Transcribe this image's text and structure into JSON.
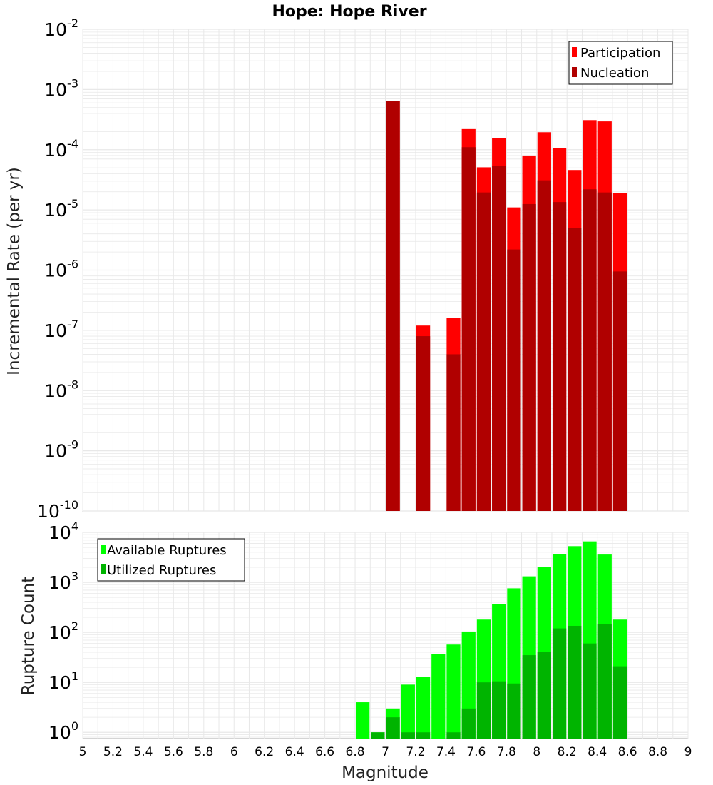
{
  "title": "Hope: Hope River",
  "xlabel": "Magnitude",
  "colors": {
    "participation": "#ff0000",
    "nucleation": "#b00000",
    "available": "#00ff00",
    "utilized": "#00b400",
    "grid": "#e8e8e8"
  },
  "chart_data": [
    {
      "type": "bar",
      "scale": "log",
      "ylabel": "Incremental Rate (per yr)",
      "xlim": [
        5,
        9
      ],
      "ylim": [
        1e-10,
        0.01
      ],
      "y_ticks": [
        {
          "base": "10",
          "exp": "-10",
          "value": 1e-10
        },
        {
          "base": "10",
          "exp": "-9",
          "value": 1e-09
        },
        {
          "base": "10",
          "exp": "-8",
          "value": 1e-08
        },
        {
          "base": "10",
          "exp": "-7",
          "value": 1e-07
        },
        {
          "base": "10",
          "exp": "-6",
          "value": 1e-06
        },
        {
          "base": "10",
          "exp": "-5",
          "value": 1e-05
        },
        {
          "base": "10",
          "exp": "-4",
          "value": 0.0001
        },
        {
          "base": "10",
          "exp": "-3",
          "value": 0.001
        },
        {
          "base": "10",
          "exp": "-2",
          "value": 0.01
        }
      ],
      "grid": true,
      "legend_position": "top-right",
      "series": [
        {
          "name": "Participation",
          "color": "#ff0000",
          "x": [
            7.05,
            7.25,
            7.45,
            7.55,
            7.65,
            7.75,
            7.85,
            7.95,
            8.05,
            8.15,
            8.25,
            8.35,
            8.45,
            8.55
          ],
          "values": [
            0.00065,
            1.2e-07,
            1.6e-07,
            0.00022,
            5.1e-05,
            0.000155,
            1.1e-05,
            8e-05,
            0.000195,
            0.000105,
            4.6e-05,
            0.00031,
            0.000295,
            1.9e-05
          ]
        },
        {
          "name": "Nucleation",
          "color": "#b00000",
          "x": [
            7.05,
            7.25,
            7.45,
            7.55,
            7.65,
            7.75,
            7.85,
            7.95,
            8.05,
            8.15,
            8.25,
            8.35,
            8.45,
            8.55
          ],
          "values": [
            0.00065,
            8e-08,
            4e-08,
            0.00011,
            1.95e-05,
            5.3e-05,
            2.2e-06,
            1.25e-05,
            3.1e-05,
            1.35e-05,
            5e-06,
            2.2e-05,
            1.95e-05,
            9.5e-07
          ]
        }
      ]
    },
    {
      "type": "bar",
      "scale": "log",
      "ylabel": "Rupture Count",
      "xlabel": "Magnitude",
      "xlim": [
        5,
        9
      ],
      "ylim": [
        0.75,
        10000
      ],
      "y_ticks": [
        {
          "base": "10",
          "exp": "0",
          "value": 1
        },
        {
          "base": "10",
          "exp": "1",
          "value": 10
        },
        {
          "base": "10",
          "exp": "2",
          "value": 100
        },
        {
          "base": "10",
          "exp": "3",
          "value": 1000
        },
        {
          "base": "10",
          "exp": "4",
          "value": 10000
        }
      ],
      "x_ticks": [
        "5",
        "5.2",
        "5.4",
        "5.6",
        "5.8",
        "6",
        "6.2",
        "6.4",
        "6.6",
        "6.8",
        "7",
        "7.2",
        "7.4",
        "7.6",
        "7.8",
        "8",
        "8.2",
        "8.4",
        "8.6",
        "8.8",
        "9"
      ],
      "grid": true,
      "legend_position": "top-left",
      "series": [
        {
          "name": "Available Ruptures",
          "color": "#00ff00",
          "x": [
            6.85,
            6.95,
            7.05,
            7.15,
            7.25,
            7.35,
            7.45,
            7.55,
            7.65,
            7.75,
            7.85,
            7.95,
            8.05,
            8.15,
            8.25,
            8.35,
            8.45,
            8.55
          ],
          "values": [
            4,
            1,
            3,
            9,
            13,
            37,
            57,
            104,
            180,
            370,
            760,
            1320,
            2050,
            3700,
            5300,
            6600,
            3600,
            180
          ]
        },
        {
          "name": "Utilized Ruptures",
          "color": "#00b400",
          "x": [
            6.95,
            7.05,
            7.15,
            7.25,
            7.35,
            7.45,
            7.55,
            7.65,
            7.75,
            7.85,
            7.95,
            8.05,
            8.15,
            8.25,
            8.35,
            8.45,
            8.55
          ],
          "values": [
            1,
            2,
            1,
            1,
            0,
            1,
            3,
            10,
            10.5,
            9.5,
            35,
            40,
            120,
            135,
            60,
            145,
            21
          ]
        }
      ]
    }
  ]
}
